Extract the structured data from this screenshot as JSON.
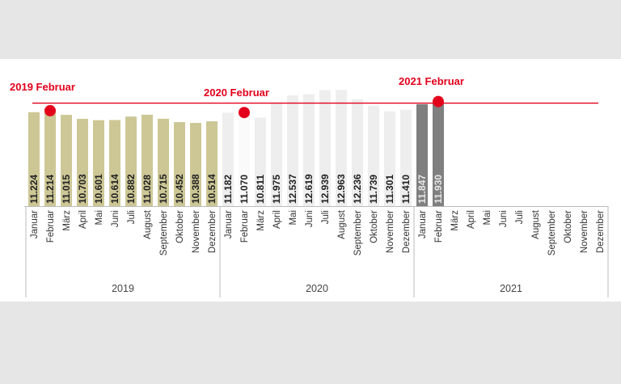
{
  "chart_data": {
    "type": "bar",
    "years": [
      "2019",
      "2020",
      "2021"
    ],
    "months": [
      "Januar",
      "Februar",
      "März",
      "April",
      "Mai",
      "Juni",
      "Juli",
      "August",
      "September",
      "Oktober",
      "November",
      "Dezember"
    ],
    "series": [
      {
        "year": "2019",
        "color": "#cdc796",
        "label_color": "#222222",
        "values": [
          11224,
          11214,
          11015,
          10703,
          10601,
          10614,
          10882,
          11028,
          10715,
          10452,
          10388,
          10514
        ],
        "labels": [
          "11.224",
          "11.214",
          "11.015",
          "10.703",
          "10.601",
          "10.614",
          "10.882",
          "11.028",
          "10.715",
          "10.452",
          "10.388",
          "10.514"
        ]
      },
      {
        "year": "2020",
        "color": "#eeeeee",
        "label_color": "#222222",
        "values": [
          11182,
          11070,
          10811,
          11975,
          12537,
          12619,
          12939,
          12963,
          12236,
          11739,
          11301,
          11410
        ],
        "labels": [
          "11.182",
          "11.070",
          "10.811",
          "11.975",
          "12.537",
          "12.619",
          "12.939",
          "12.963",
          "12.236",
          "11.739",
          "11.301",
          "11.410"
        ]
      },
      {
        "year": "2021",
        "color": "#7f7f7f",
        "label_color": "#e8e8e8",
        "values": [
          11847,
          11930
        ],
        "labels": [
          "11.847",
          "11.930"
        ]
      }
    ],
    "reference_line": {
      "value": 11930,
      "color": "#e3001b"
    },
    "highlights": [
      {
        "label": "2019 Februar",
        "year": "2019",
        "month": "Februar",
        "value": 11214
      },
      {
        "label": "2020 Februar",
        "year": "2020",
        "month": "Februar",
        "value": 11070
      },
      {
        "label": "2021 Februar",
        "year": "2021",
        "month": "Februar",
        "value": 11930
      }
    ],
    "highlight_color": "#e3001b",
    "ylim": [
      3900,
      13100
    ],
    "grid": false,
    "legend": "none"
  }
}
